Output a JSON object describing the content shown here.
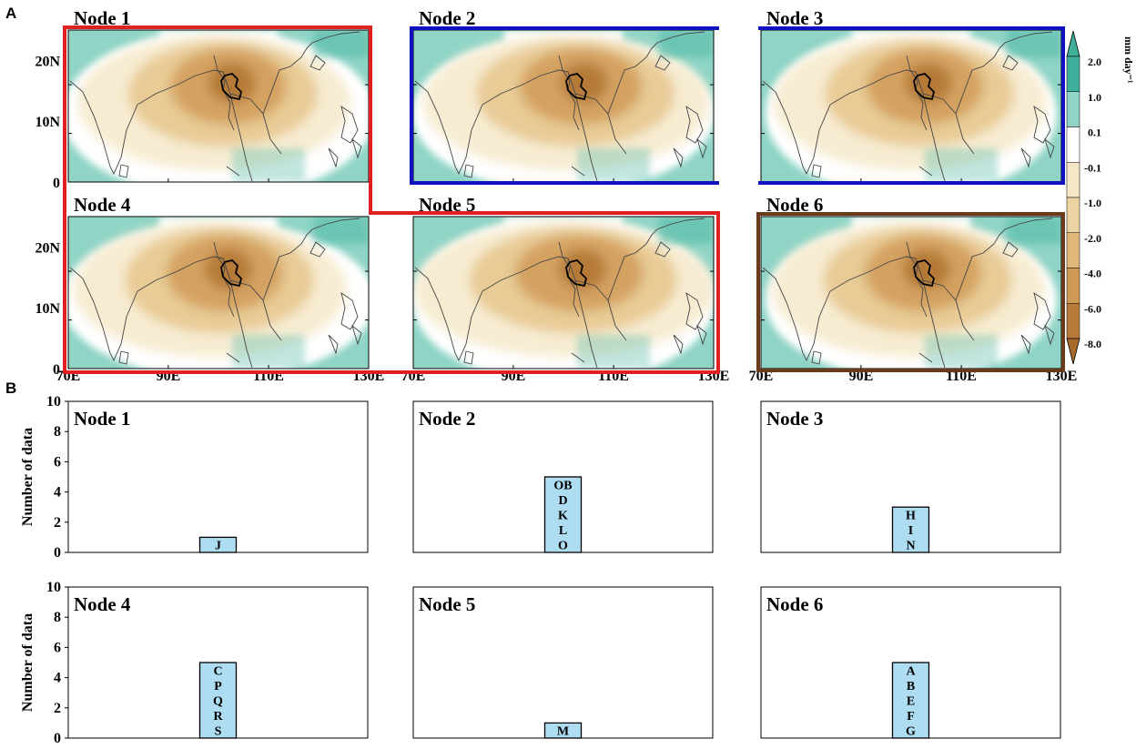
{
  "figure": {
    "panel_a_label": "A",
    "panel_b_label": "B"
  },
  "colorbar": {
    "unit": "mm day⁻¹",
    "levels": [
      "2.0",
      "1.0",
      "0.1",
      "-0.1",
      "-1.0",
      "-2.0",
      "-4.0",
      "-6.0",
      "-8.0"
    ],
    "colors": [
      "#3fae9b",
      "#8fd4c6",
      "#ffffff",
      "#f6e7c9",
      "#ecd3a2",
      "#e0b97a",
      "#cf9a55",
      "#b87a3a"
    ]
  },
  "colors": {
    "teal": "#8fd4c6",
    "teal_dark": "#4fb8a6",
    "cream": "#f7ecd2",
    "tan": "#e8cb95",
    "brown": "#d4a261",
    "brown_dark": "#b57a37",
    "red_group": "#e02020",
    "blue_group": "#1010c0",
    "brown_group": "#6b3a1a",
    "bar_fill": "#aeddf2"
  },
  "chart_data": [
    {
      "type": "heatmap",
      "panel": "A",
      "description_variable": "precipitation anomaly composite",
      "x_ticks": [
        "70E",
        "90E",
        "110E",
        "130E"
      ],
      "y_ticks": [
        "0",
        "10N",
        "20N"
      ],
      "xlim": [
        70,
        130
      ],
      "ylim": [
        0,
        25
      ],
      "nodes": [
        {
          "title": "Node 1",
          "group": "red"
        },
        {
          "title": "Node 2",
          "group": "blue"
        },
        {
          "title": "Node 3",
          "group": "blue"
        },
        {
          "title": "Node 4",
          "group": "red"
        },
        {
          "title": "Node 5",
          "group": "red"
        },
        {
          "title": "Node 6",
          "group": "brown"
        }
      ]
    },
    {
      "type": "bar",
      "panel": "B",
      "ylabel": "Number of data",
      "ylim": [
        0,
        10
      ],
      "y_ticks": [
        "0",
        "2",
        "4",
        "6",
        "8",
        "10"
      ],
      "nodes": [
        {
          "title": "Node 1",
          "value": 1,
          "letters": [
            "J"
          ]
        },
        {
          "title": "Node 2",
          "value": 5,
          "letters": [
            "OB",
            "D",
            "K",
            "L",
            "O"
          ]
        },
        {
          "title": "Node 3",
          "value": 3,
          "letters": [
            "H",
            "I",
            "N"
          ]
        },
        {
          "title": "Node 4",
          "value": 5,
          "letters": [
            "C",
            "P",
            "Q",
            "R",
            "S"
          ]
        },
        {
          "title": "Node 5",
          "value": 1,
          "letters": [
            "M"
          ]
        },
        {
          "title": "Node 6",
          "value": 5,
          "letters": [
            "A",
            "B",
            "E",
            "F",
            "G"
          ]
        }
      ]
    }
  ]
}
